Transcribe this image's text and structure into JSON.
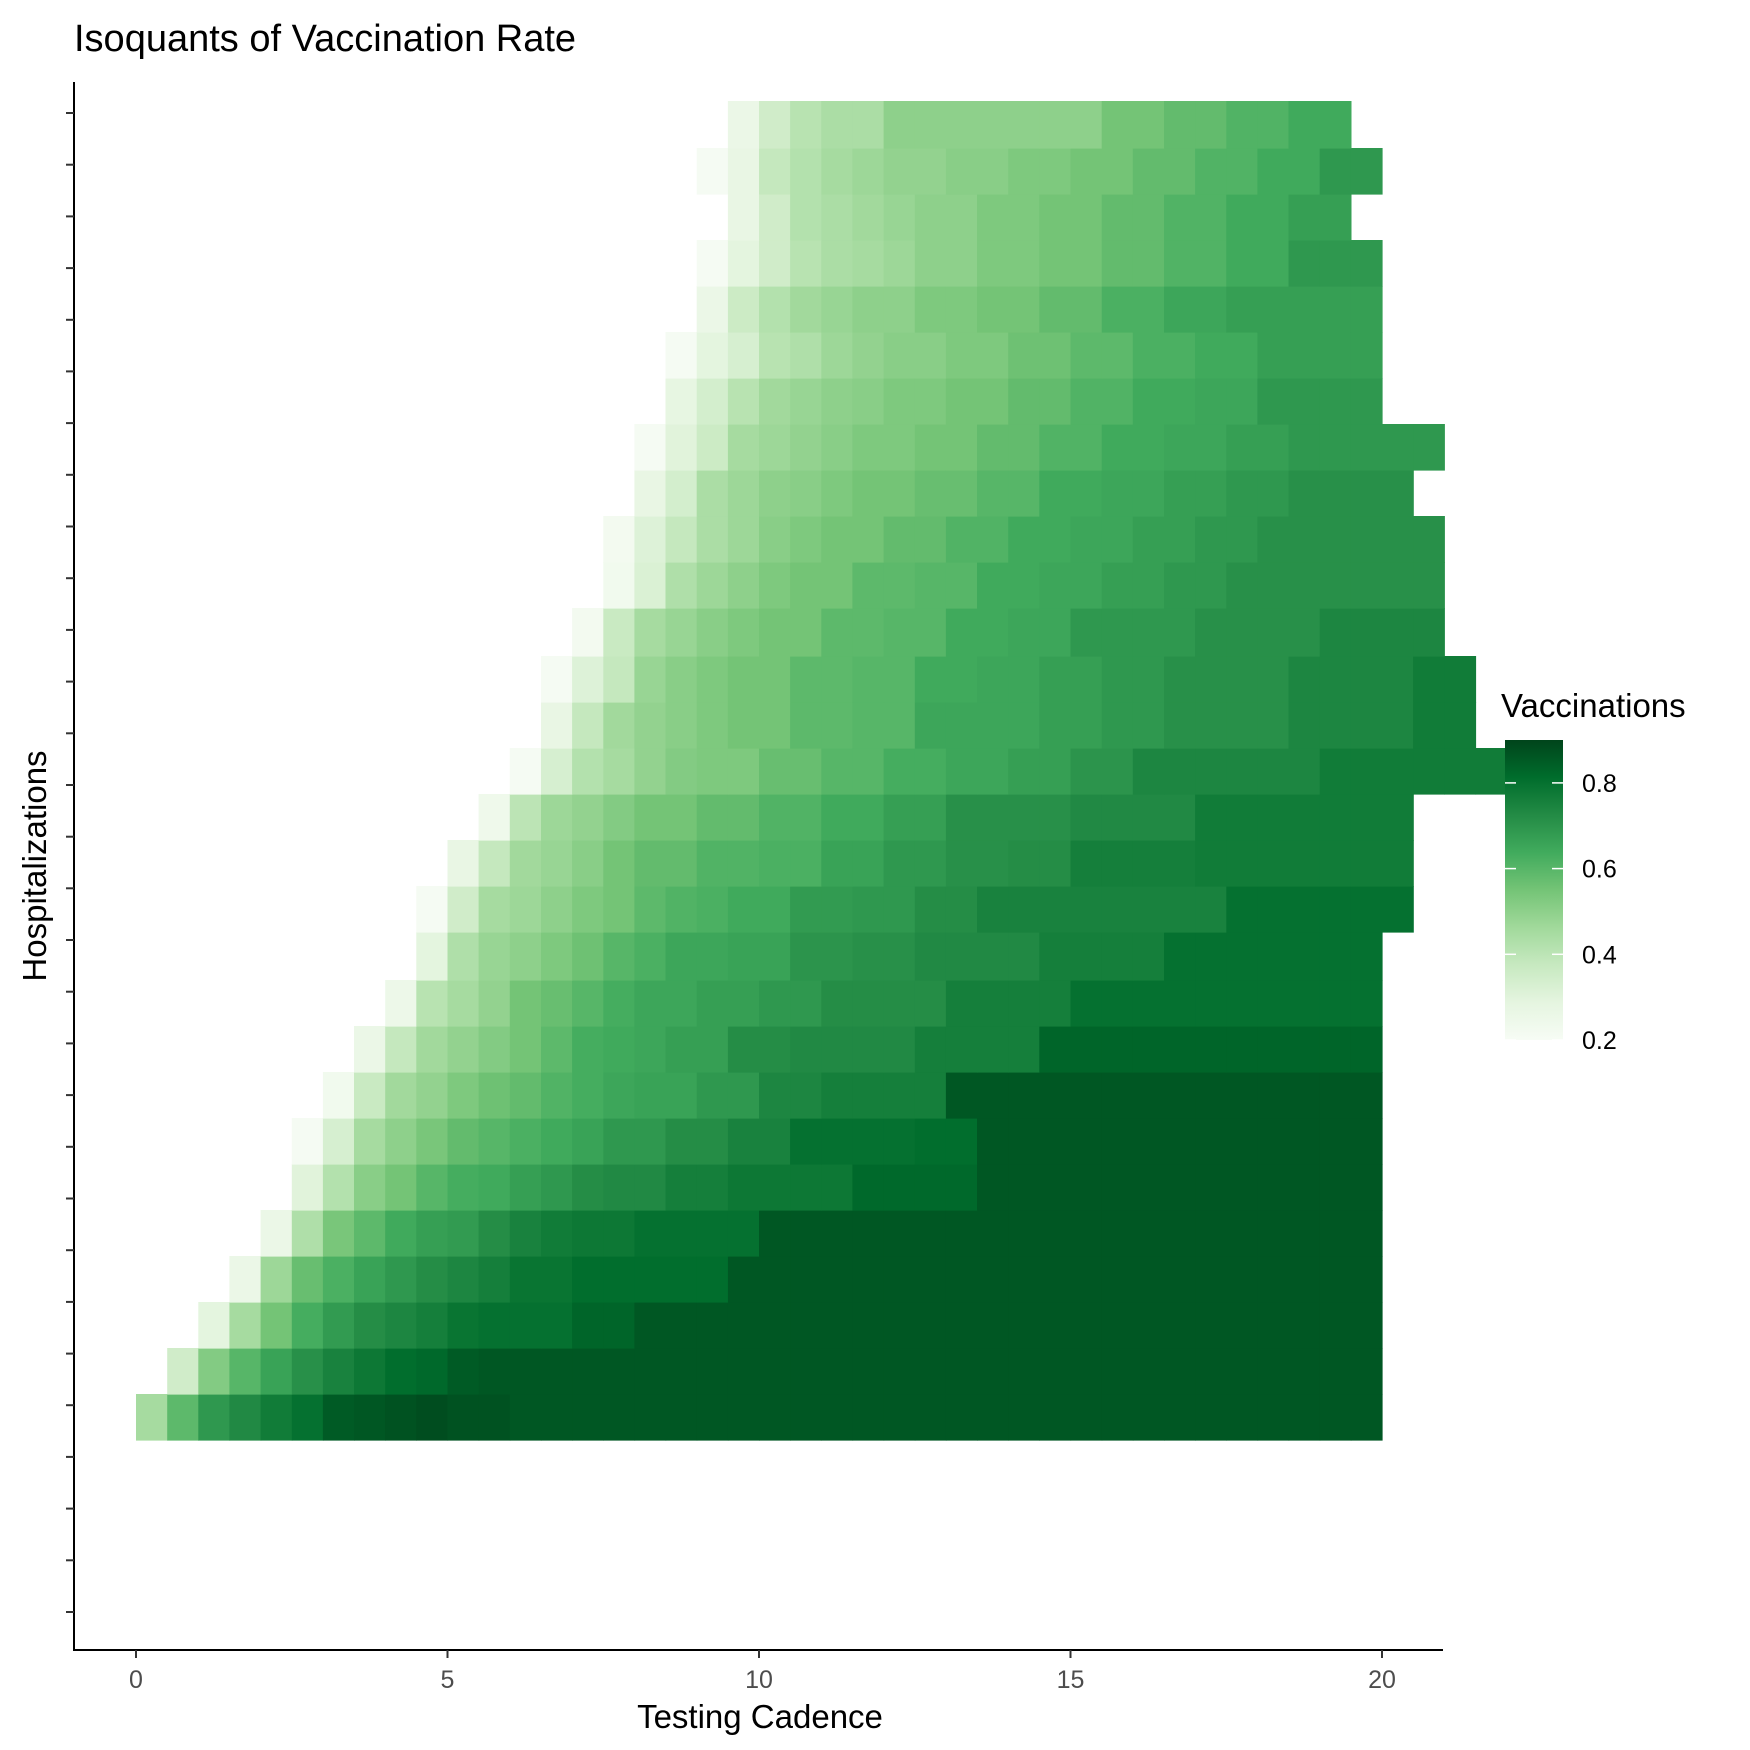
{
  "chart_data": {
    "type": "heatmap",
    "title": "Isoquants of Vaccination Rate",
    "xlabel": "Testing Cadence",
    "ylabel": "Hospitalizations",
    "xlim": [
      -1,
      21
    ],
    "x_ticks": [
      0,
      5,
      10,
      15,
      20
    ],
    "x_tick_labels": [
      "0",
      "5",
      "10",
      "15",
      "20"
    ],
    "y_tick_count": 30,
    "y_tick_labels_shown": false,
    "grid": false,
    "x_values": [
      0,
      0.5,
      1,
      1.5,
      2,
      2.5,
      3,
      3.5,
      4,
      4.5,
      5,
      5.5,
      6,
      6.5,
      7,
      7.5,
      8,
      8.5,
      9,
      9.5,
      10,
      10.5,
      11,
      11.5,
      12,
      12.5,
      13,
      13.5,
      14,
      14.5,
      15,
      15.5,
      16,
      16.5,
      17,
      17.5,
      18,
      18.5,
      19,
      19.5
    ],
    "cell_width": 0.5,
    "row_edges": [
      1440,
      1394,
      1348,
      1302,
      1256,
      1210,
      1164,
      1118,
      1072,
      1026,
      980,
      932,
      886,
      840,
      794,
      748,
      702,
      656,
      608,
      562,
      516,
      470,
      424,
      378,
      332,
      286,
      240,
      194,
      148,
      101
    ],
    "rows": [
      {
        "start": 0.0,
        "values": [
          0.45,
          0.59,
          0.69,
          0.73,
          0.77,
          0.8,
          0.85,
          0.86,
          0.87,
          0.88,
          0.87,
          0.87,
          0.86,
          0.86,
          0.86,
          0.86,
          0.86,
          0.86,
          0.86,
          0.86,
          0.86,
          0.86,
          0.86,
          0.86,
          0.86,
          0.86,
          0.86,
          0.86,
          0.86,
          0.86,
          0.86,
          0.86,
          0.86,
          0.86,
          0.86,
          0.86,
          0.86,
          0.86,
          0.86,
          0.86
        ]
      },
      {
        "start": 0.5,
        "values": [
          0.35,
          0.52,
          0.6,
          0.66,
          0.71,
          0.75,
          0.78,
          0.81,
          0.82,
          0.85,
          0.86,
          0.86,
          0.86,
          0.86,
          0.86,
          0.86,
          0.86,
          0.86,
          0.86,
          0.86,
          0.86,
          0.86,
          0.86,
          0.86,
          0.86,
          0.86,
          0.86,
          0.86,
          0.86,
          0.86,
          0.86,
          0.86,
          0.86,
          0.86,
          0.86,
          0.86,
          0.86,
          0.86,
          0.86
        ]
      },
      {
        "start": 1.0,
        "values": [
          0.29,
          0.45,
          0.55,
          0.63,
          0.68,
          0.72,
          0.74,
          0.76,
          0.79,
          0.8,
          0.8,
          0.8,
          0.83,
          0.83,
          0.86,
          0.86,
          0.86,
          0.86,
          0.86,
          0.86,
          0.86,
          0.86,
          0.86,
          0.86,
          0.86,
          0.86,
          0.86,
          0.86,
          0.86,
          0.86,
          0.86,
          0.86,
          0.86,
          0.86,
          0.86,
          0.86,
          0.86,
          0.86
        ]
      },
      {
        "start": 1.5,
        "values": [
          0.26,
          0.47,
          0.57,
          0.62,
          0.66,
          0.69,
          0.72,
          0.74,
          0.76,
          0.79,
          0.79,
          0.81,
          0.81,
          0.81,
          0.81,
          0.81,
          0.86,
          0.86,
          0.86,
          0.86,
          0.86,
          0.86,
          0.86,
          0.86,
          0.86,
          0.86,
          0.86,
          0.86,
          0.86,
          0.86,
          0.86,
          0.86,
          0.86,
          0.86,
          0.86,
          0.86,
          0.86
        ]
      },
      {
        "start": 2.0,
        "values": [
          0.26,
          0.43,
          0.54,
          0.59,
          0.64,
          0.67,
          0.68,
          0.72,
          0.75,
          0.77,
          0.78,
          0.78,
          0.8,
          0.8,
          0.8,
          0.8,
          0.86,
          0.86,
          0.86,
          0.86,
          0.86,
          0.86,
          0.86,
          0.86,
          0.86,
          0.86,
          0.86,
          0.86,
          0.86,
          0.86,
          0.86,
          0.86,
          0.86,
          0.86,
          0.86,
          0.86
        ]
      },
      {
        "start": 2.5,
        "values": [
          0.3,
          0.42,
          0.51,
          0.55,
          0.6,
          0.63,
          0.64,
          0.67,
          0.69,
          0.72,
          0.73,
          0.73,
          0.76,
          0.76,
          0.78,
          0.78,
          0.78,
          0.78,
          0.82,
          0.82,
          0.82,
          0.82,
          0.86,
          0.86,
          0.86,
          0.86,
          0.86,
          0.86,
          0.86,
          0.86,
          0.86,
          0.86,
          0.86,
          0.86,
          0.86
        ]
      },
      {
        "start": 2.5,
        "values": [
          0.21,
          0.33,
          0.45,
          0.5,
          0.54,
          0.58,
          0.6,
          0.62,
          0.64,
          0.66,
          0.69,
          0.69,
          0.72,
          0.72,
          0.75,
          0.75,
          0.8,
          0.8,
          0.8,
          0.8,
          0.81,
          0.81,
          0.86,
          0.86,
          0.86,
          0.86,
          0.86,
          0.86,
          0.86,
          0.86,
          0.86,
          0.86,
          0.86,
          0.86,
          0.86
        ]
      },
      {
        "start": 3.0,
        "values": [
          0.23,
          0.37,
          0.46,
          0.49,
          0.53,
          0.56,
          0.58,
          0.61,
          0.63,
          0.65,
          0.66,
          0.66,
          0.69,
          0.69,
          0.74,
          0.74,
          0.76,
          0.76,
          0.76,
          0.76,
          0.86,
          0.86,
          0.86,
          0.86,
          0.86,
          0.86,
          0.86,
          0.86,
          0.86,
          0.86,
          0.86,
          0.86,
          0.86,
          0.86
        ]
      },
      {
        "start": 3.5,
        "values": [
          0.26,
          0.38,
          0.46,
          0.49,
          0.52,
          0.55,
          0.59,
          0.63,
          0.64,
          0.65,
          0.67,
          0.67,
          0.72,
          0.72,
          0.73,
          0.73,
          0.73,
          0.73,
          0.76,
          0.76,
          0.76,
          0.76,
          0.83,
          0.83,
          0.83,
          0.83,
          0.83,
          0.83,
          0.83,
          0.83,
          0.83,
          0.83,
          0.83
        ]
      },
      {
        "start": 4.0,
        "values": [
          0.25,
          0.41,
          0.45,
          0.49,
          0.55,
          0.57,
          0.6,
          0.63,
          0.65,
          0.65,
          0.67,
          0.67,
          0.69,
          0.69,
          0.72,
          0.72,
          0.72,
          0.72,
          0.76,
          0.76,
          0.76,
          0.76,
          0.8,
          0.8,
          0.8,
          0.8,
          0.8,
          0.8,
          0.8,
          0.8,
          0.8,
          0.8
        ]
      },
      {
        "start": 4.5,
        "values": [
          0.29,
          0.43,
          0.48,
          0.5,
          0.53,
          0.56,
          0.6,
          0.62,
          0.65,
          0.65,
          0.66,
          0.66,
          0.7,
          0.7,
          0.71,
          0.71,
          0.73,
          0.73,
          0.73,
          0.73,
          0.76,
          0.76,
          0.76,
          0.76,
          0.8,
          0.8,
          0.8,
          0.8,
          0.8,
          0.8,
          0.8
        ]
      },
      {
        "start": 4.5,
        "values": [
          0.21,
          0.35,
          0.45,
          0.47,
          0.5,
          0.53,
          0.55,
          0.59,
          0.61,
          0.62,
          0.64,
          0.64,
          0.68,
          0.68,
          0.69,
          0.69,
          0.72,
          0.72,
          0.75,
          0.75,
          0.75,
          0.75,
          0.75,
          0.75,
          0.75,
          0.75,
          0.8,
          0.8,
          0.8,
          0.8,
          0.8,
          0.8
        ]
      },
      {
        "start": 5.0,
        "values": [
          0.27,
          0.38,
          0.46,
          0.48,
          0.51,
          0.55,
          0.58,
          0.58,
          0.61,
          0.61,
          0.62,
          0.62,
          0.66,
          0.66,
          0.69,
          0.69,
          0.71,
          0.71,
          0.72,
          0.72,
          0.76,
          0.76,
          0.76,
          0.76,
          0.77,
          0.77,
          0.77,
          0.77,
          0.77,
          0.77,
          0.77
        ]
      },
      {
        "start": 5.5,
        "values": [
          0.24,
          0.4,
          0.47,
          0.49,
          0.52,
          0.55,
          0.55,
          0.58,
          0.58,
          0.61,
          0.61,
          0.64,
          0.64,
          0.67,
          0.67,
          0.71,
          0.71,
          0.71,
          0.71,
          0.73,
          0.73,
          0.73,
          0.73,
          0.77,
          0.77,
          0.77,
          0.77,
          0.77,
          0.77,
          0.77
        ]
      },
      {
        "start": 6.0,
        "values": [
          0.21,
          0.33,
          0.42,
          0.45,
          0.49,
          0.52,
          0.53,
          0.53,
          0.57,
          0.57,
          0.6,
          0.6,
          0.63,
          0.63,
          0.65,
          0.65,
          0.67,
          0.67,
          0.7,
          0.7,
          0.74,
          0.74,
          0.74,
          0.74,
          0.74,
          0.74,
          0.77,
          0.77,
          0.77,
          0.77,
          0.77,
          0.77
        ]
      },
      {
        "start": 6.5,
        "values": [
          0.27,
          0.38,
          0.46,
          0.49,
          0.51,
          0.53,
          0.55,
          0.55,
          0.59,
          0.59,
          0.6,
          0.6,
          0.65,
          0.65,
          0.65,
          0.65,
          0.67,
          0.67,
          0.69,
          0.69,
          0.71,
          0.71,
          0.71,
          0.71,
          0.74,
          0.74,
          0.74,
          0.74,
          0.77,
          0.77
        ]
      },
      {
        "start": 6.5,
        "values": [
          0.21,
          0.31,
          0.38,
          0.48,
          0.51,
          0.53,
          0.55,
          0.55,
          0.59,
          0.59,
          0.6,
          0.6,
          0.64,
          0.64,
          0.65,
          0.65,
          0.67,
          0.67,
          0.69,
          0.69,
          0.71,
          0.71,
          0.71,
          0.71,
          0.74,
          0.74,
          0.74,
          0.74,
          0.77,
          0.77
        ]
      },
      {
        "start": 7.0,
        "values": [
          0.22,
          0.37,
          0.45,
          0.48,
          0.51,
          0.53,
          0.55,
          0.55,
          0.59,
          0.59,
          0.6,
          0.6,
          0.64,
          0.64,
          0.65,
          0.65,
          0.69,
          0.69,
          0.69,
          0.69,
          0.71,
          0.71,
          0.71,
          0.71,
          0.74,
          0.74,
          0.74,
          0.74
        ]
      },
      {
        "start": 7.5,
        "values": [
          0.23,
          0.32,
          0.43,
          0.47,
          0.5,
          0.53,
          0.55,
          0.55,
          0.59,
          0.59,
          0.6,
          0.6,
          0.64,
          0.64,
          0.65,
          0.65,
          0.67,
          0.67,
          0.69,
          0.69,
          0.71,
          0.71,
          0.71,
          0.71,
          0.71,
          0.71,
          0.71
        ]
      },
      {
        "start": 7.5,
        "values": [
          0.22,
          0.31,
          0.38,
          0.44,
          0.47,
          0.51,
          0.53,
          0.55,
          0.55,
          0.58,
          0.58,
          0.61,
          0.61,
          0.64,
          0.64,
          0.65,
          0.65,
          0.67,
          0.67,
          0.69,
          0.69,
          0.71,
          0.71,
          0.71,
          0.71,
          0.71,
          0.71
        ]
      },
      {
        "start": 8.0,
        "values": [
          0.27,
          0.34,
          0.44,
          0.47,
          0.5,
          0.51,
          0.53,
          0.55,
          0.55,
          0.57,
          0.57,
          0.6,
          0.6,
          0.64,
          0.64,
          0.65,
          0.65,
          0.67,
          0.67,
          0.69,
          0.69,
          0.71,
          0.71,
          0.71,
          0.71
        ]
      },
      {
        "start": 8.0,
        "values": [
          0.21,
          0.3,
          0.36,
          0.45,
          0.47,
          0.49,
          0.51,
          0.53,
          0.53,
          0.55,
          0.55,
          0.58,
          0.58,
          0.61,
          0.61,
          0.64,
          0.64,
          0.65,
          0.65,
          0.67,
          0.67,
          0.69,
          0.69,
          0.69,
          0.69,
          0.69
        ]
      },
      {
        "start": 8.5,
        "values": [
          0.28,
          0.34,
          0.41,
          0.46,
          0.48,
          0.5,
          0.51,
          0.53,
          0.53,
          0.55,
          0.55,
          0.58,
          0.58,
          0.61,
          0.61,
          0.64,
          0.64,
          0.65,
          0.65,
          0.69,
          0.69,
          0.69,
          0.69
        ]
      },
      {
        "start": 8.5,
        "values": [
          0.21,
          0.29,
          0.33,
          0.41,
          0.43,
          0.47,
          0.49,
          0.51,
          0.51,
          0.53,
          0.53,
          0.56,
          0.56,
          0.59,
          0.59,
          0.62,
          0.62,
          0.64,
          0.64,
          0.67,
          0.67,
          0.67,
          0.67
        ]
      },
      {
        "start": 9.0,
        "values": [
          0.26,
          0.36,
          0.42,
          0.46,
          0.48,
          0.5,
          0.5,
          0.53,
          0.53,
          0.55,
          0.55,
          0.58,
          0.58,
          0.62,
          0.62,
          0.65,
          0.65,
          0.67,
          0.67,
          0.67,
          0.67,
          0.67
        ]
      },
      {
        "start": 9.0,
        "values": [
          0.21,
          0.29,
          0.35,
          0.41,
          0.44,
          0.45,
          0.47,
          0.5,
          0.5,
          0.53,
          0.53,
          0.55,
          0.55,
          0.58,
          0.58,
          0.61,
          0.61,
          0.64,
          0.64,
          0.69,
          0.69,
          0.69
        ]
      },
      {
        "start": 9.5,
        "values": [
          0.27,
          0.35,
          0.42,
          0.44,
          0.46,
          0.48,
          0.5,
          0.5,
          0.53,
          0.53,
          0.55,
          0.55,
          0.58,
          0.58,
          0.61,
          0.61,
          0.64,
          0.64,
          0.67,
          0.67
        ]
      },
      {
        "start": 9.0,
        "values": [
          0.21,
          0.27,
          0.38,
          0.42,
          0.45,
          0.47,
          0.49,
          0.49,
          0.51,
          0.51,
          0.53,
          0.53,
          0.55,
          0.55,
          0.58,
          0.58,
          0.61,
          0.61,
          0.64,
          0.64,
          0.69,
          0.69
        ]
      },
      {
        "start": 9.5,
        "values": [
          0.26,
          0.35,
          0.41,
          0.44,
          0.44,
          0.5,
          0.5,
          0.5,
          0.5,
          0.5,
          0.5,
          0.5,
          0.55,
          0.55,
          0.58,
          0.58,
          0.61,
          0.61,
          0.64,
          0.64
        ]
      },
      {
        "start": 9.5,
        "values": [
          0.24,
          0.35,
          0.41,
          0.44,
          0.44,
          null,
          null,
          null,
          null,
          null,
          null,
          null,
          0.62,
          0.62,
          null,
          0.65,
          0.65,
          null,
          null,
          null
        ]
      }
    ],
    "legend": {
      "title": "Vaccinations",
      "ticks": [
        0.2,
        0.4,
        0.6,
        0.8
      ],
      "tick_labels": [
        "0.2",
        "0.4",
        "0.6",
        "0.8"
      ],
      "range": [
        0.2,
        0.9
      ],
      "placement": "right"
    },
    "color_stops": [
      "#f7fcf5",
      "#e5f5e0",
      "#c7e9c0",
      "#a1d99b",
      "#74c476",
      "#41ab5d",
      "#238b45",
      "#006d2c",
      "#00441b"
    ]
  }
}
